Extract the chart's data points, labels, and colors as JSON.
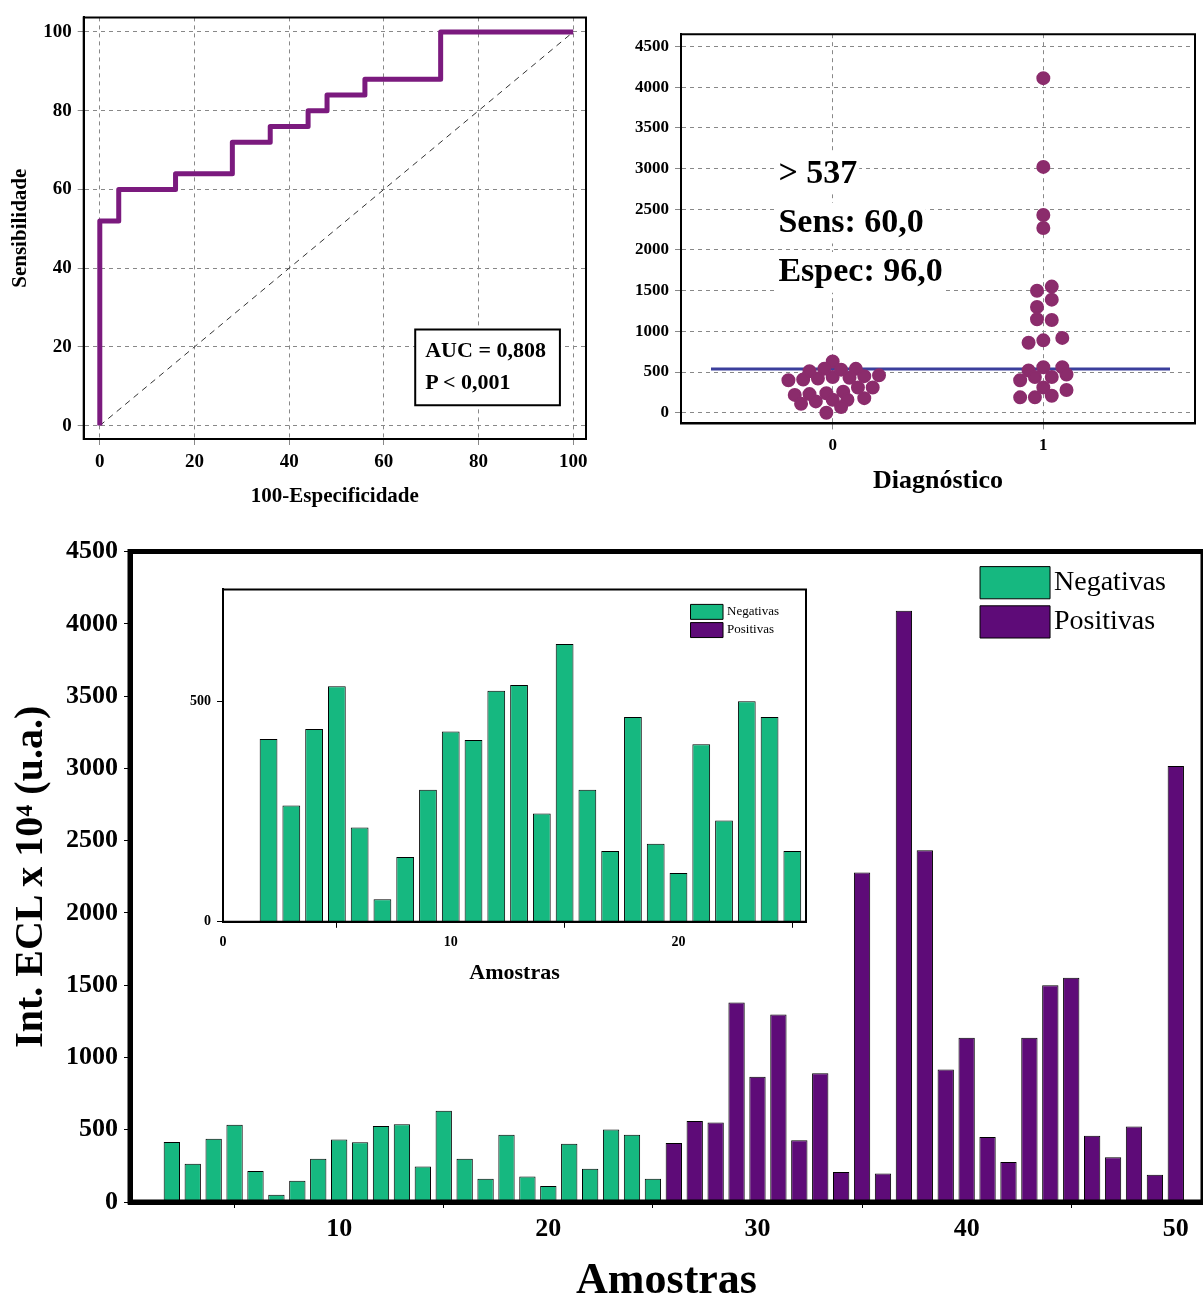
{
  "chart_data": [
    {
      "type": "line",
      "xlabel": "100-Especificidade",
      "ylabel": "Sensibilidade",
      "xlim": [
        -3.4,
        102.7
      ],
      "ylim": [
        -3.4,
        103.7
      ],
      "xticks": [
        0,
        20,
        40,
        60,
        80,
        100
      ],
      "yticks": [
        0,
        20,
        40,
        60,
        80,
        100
      ],
      "grid": true,
      "marker": "none",
      "annotations": [
        "AUC = 0,808",
        "P < 0,001"
      ],
      "series": [
        {
          "color": "#7b1a7e",
          "x": [
            0,
            0,
            4,
            4,
            16,
            16,
            28,
            28,
            36,
            36,
            44,
            44,
            48,
            48,
            56,
            56,
            72,
            72,
            100
          ],
          "values": [
            0,
            52,
            52,
            60,
            60,
            64,
            64,
            72,
            72,
            76,
            76,
            80,
            80,
            84,
            84,
            88,
            88,
            100,
            100
          ]
        },
        {
          "color": "#333333",
          "line_style": "dashed",
          "x": [
            0,
            100
          ],
          "values": [
            0,
            100
          ]
        }
      ]
    },
    {
      "type": "scatter",
      "xlabel": "Diagnóstico",
      "xlim": [
        -0.72,
        1.72
      ],
      "ylim": [
        -130,
        4650
      ],
      "xticks": [
        0,
        1
      ],
      "yticks": [
        0,
        500,
        1000,
        1500,
        2000,
        2500,
        3000,
        3500,
        4000,
        4500
      ],
      "grid": true,
      "marker": "circle",
      "annotations": [
        "> 537",
        "Sens: 60,0",
        "Espec: 96,0"
      ],
      "ref_lines": [
        {
          "axis": "y",
          "value": 537,
          "color": "#3b3f9c"
        }
      ],
      "series": [
        {
          "color": "#8b2c6c",
          "x": [
            0,
            -0.11,
            0.11,
            -0.21,
            -0.14,
            -0.07,
            0,
            0.08,
            0.15,
            0.22,
            -0.04,
            0.04,
            -0.18,
            -0.11,
            -0.03,
            0.05,
            0.12,
            0.19,
            -0.15,
            -0.08,
            0,
            0.07,
            0.15,
            0.04,
            -0.03,
            1,
            1,
            1,
            1,
            0.97,
            1.04,
            0.97,
            1.04,
            0.97,
            1.04,
            0.93,
            1,
            1.09,
            0.93,
            1,
            1.09,
            0.89,
            0.96,
            1.04,
            1.11,
            1,
            1.11,
            0.89,
            0.96,
            1.04
          ],
          "values": [
            630,
            510,
            540,
            400,
            410,
            420,
            440,
            430,
            450,
            460,
            540,
            530,
            220,
            230,
            240,
            260,
            310,
            310,
            110,
            140,
            160,
            160,
            180,
            70,
            0,
            4110,
            3020,
            2430,
            2270,
            1500,
            1550,
            1300,
            1390,
            1150,
            1140,
            860,
            890,
            920,
            520,
            560,
            560,
            400,
            440,
            440,
            470,
            310,
            280,
            190,
            190,
            210
          ]
        }
      ]
    },
    {
      "type": "bar",
      "xlabel": "Amostras",
      "ylabel": "Int. ECL x 10⁴ (u.a.)",
      "xlim": [
        0,
        51.3
      ],
      "ylim": [
        0,
        4500
      ],
      "xticks": [
        10,
        20,
        30,
        40,
        50
      ],
      "yticks": [
        0,
        500,
        1000,
        1500,
        2000,
        2500,
        3000,
        3500,
        4000,
        4500
      ],
      "legend": "top right",
      "series": [
        {
          "name": "Negativas",
          "color": "#16b880",
          "x": [
            2,
            3,
            4,
            5,
            6,
            7,
            8,
            9,
            10,
            11,
            12,
            13,
            14,
            15,
            16,
            17,
            18,
            19,
            20,
            21,
            22,
            23,
            24,
            25
          ],
          "values": [
            415,
            264,
            438,
            535,
            214,
            51,
            147,
            300,
            432,
            413,
            525,
            538,
            246,
            631,
            300,
            161,
            465,
            177,
            111,
            403,
            230,
            501,
            465,
            161
          ]
        },
        {
          "name": "Positivas",
          "color": "#5e0b78",
          "x": [
            26,
            27,
            28,
            29,
            30,
            31,
            32,
            33,
            34,
            35,
            36,
            37,
            38,
            39,
            40,
            41,
            42,
            43,
            44,
            45,
            46,
            47,
            48,
            49,
            50
          ],
          "values": [
            409,
            560,
            550,
            1380,
            866,
            1298,
            427,
            891,
            207,
            2280,
            197,
            4090,
            2434,
            916,
            1137,
            449,
            276,
            1137,
            1500,
            1551,
            459,
            310,
            522,
            188,
            3017
          ]
        }
      ]
    },
    {
      "type": "bar",
      "xlabel": "Amostras",
      "xlim": [
        0,
        25.6
      ],
      "ylim": [
        0,
        755
      ],
      "xticks": [
        0,
        10,
        20
      ],
      "yticks": [
        0,
        500
      ],
      "legend": "top right",
      "series": [
        {
          "name": "Negativas",
          "color": "#16b880",
          "x": [
            2,
            3,
            4,
            5,
            6,
            7,
            8,
            9,
            10,
            11,
            12,
            13,
            14,
            15,
            16,
            17,
            18,
            19,
            20,
            21,
            22,
            23,
            24,
            25
          ],
          "values": [
            415,
            264,
            438,
            535,
            214,
            51,
            147,
            300,
            432,
            413,
            525,
            538,
            246,
            631,
            300,
            161,
            465,
            177,
            111,
            403,
            230,
            501,
            465,
            161
          ]
        },
        {
          "name": "Positivas",
          "color": "#5e0b78"
        }
      ]
    }
  ]
}
